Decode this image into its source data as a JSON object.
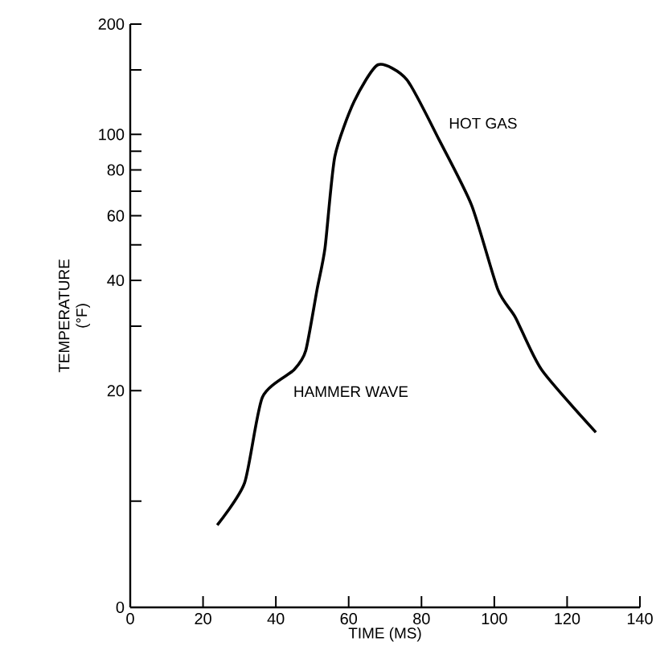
{
  "chart_data": {
    "type": "line",
    "xlabel": "TIME (MS)",
    "ylabel": "TEMPERATURE\n(°F)",
    "x": [
      23.9,
      31.4,
      36.3,
      45,
      48.2,
      51.3,
      53.5,
      56.2,
      61.5,
      68.1,
      76,
      85,
      93.8,
      101,
      105.8,
      113,
      127.9
    ],
    "series": [
      {
        "color": "#000000",
        "values": [
          8.6,
          11.2,
          19.2,
          22.8,
          25.7,
          37.7,
          49,
          87,
          123,
          155,
          141,
          96,
          64,
          37.7,
          31.7,
          22.8,
          15.4
        ]
      }
    ],
    "log": "y",
    "xlim": [
      0,
      140
    ],
    "ylim": [
      0,
      200
    ],
    "xticks": [
      0,
      20,
      40,
      60,
      80,
      100,
      120,
      140
    ],
    "yticks": [
      0,
      {
        "value": 10,
        "label": null
      },
      20,
      {
        "value": 30,
        "label": null
      },
      40,
      {
        "value": 50,
        "label": null
      },
      60,
      {
        "value": 70,
        "label": null
      },
      80,
      {
        "value": 90,
        "label": null
      },
      100,
      {
        "value": 150,
        "label": null
      },
      200
    ],
    "annotations": [
      "HOT GAS",
      "HAMMER WAVE"
    ],
    "grid": false,
    "marker": "none",
    "line_style": "solid"
  }
}
